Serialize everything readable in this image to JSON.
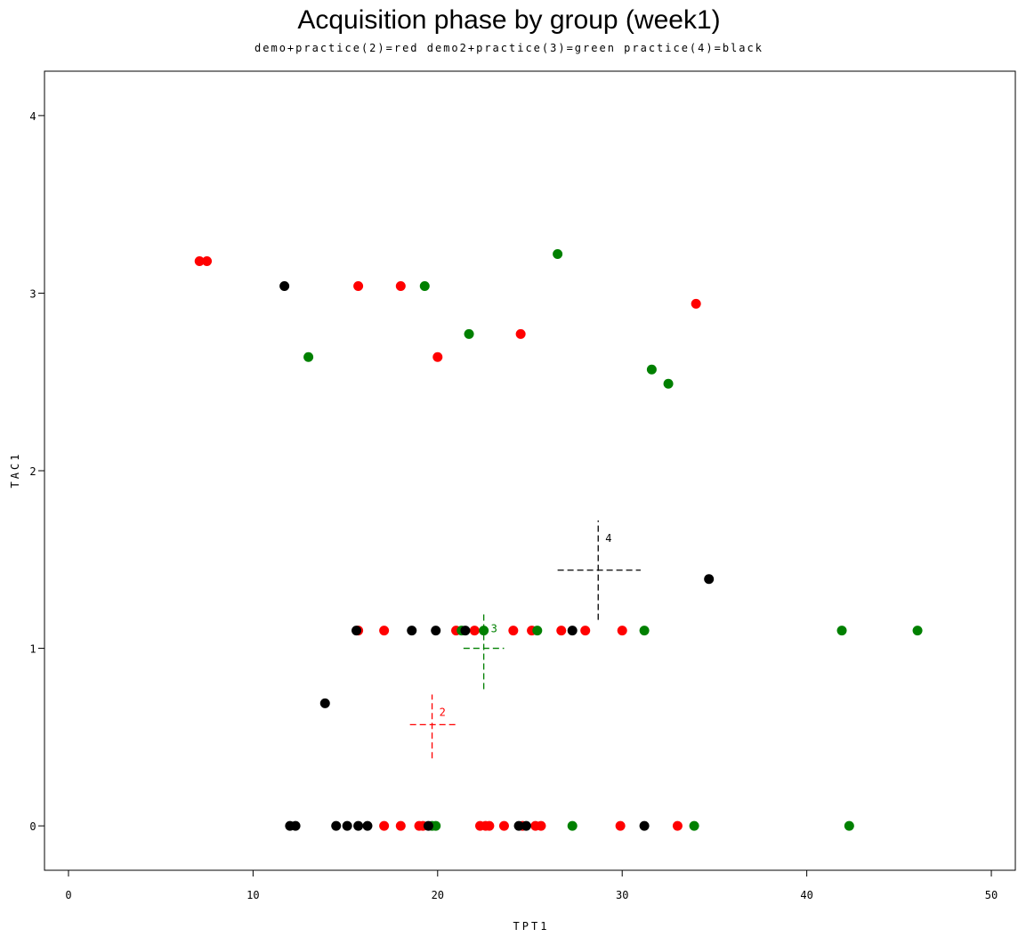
{
  "chart_data": {
    "type": "scatter",
    "title": "Acquisition phase by group (week1)",
    "subtitle": "demo+practice(2)=red demo2+practice(3)=green practice(4)=black",
    "xlabel": "TPT1",
    "ylabel": "TAC1",
    "xlim": [
      -1.3,
      51.3
    ],
    "ylim": [
      -0.25,
      4.25
    ],
    "xticks": [
      0,
      10,
      20,
      30,
      40,
      50
    ],
    "yticks": [
      0,
      1,
      2,
      3,
      4
    ],
    "grid": false,
    "series": [
      {
        "label": "2",
        "color": "#ff0000",
        "points": [
          [
            7.1,
            3.18
          ],
          [
            7.5,
            3.18
          ],
          [
            15.7,
            3.04
          ],
          [
            18.0,
            3.04
          ],
          [
            34.0,
            2.94
          ],
          [
            24.5,
            2.77
          ],
          [
            20.0,
            2.64
          ],
          [
            15.7,
            1.1
          ],
          [
            17.1,
            1.1
          ],
          [
            21.0,
            1.1
          ],
          [
            22.0,
            1.1
          ],
          [
            24.1,
            1.1
          ],
          [
            25.1,
            1.1
          ],
          [
            26.7,
            1.1
          ],
          [
            28.0,
            1.1
          ],
          [
            30.0,
            1.1
          ],
          [
            17.1,
            0
          ],
          [
            18.0,
            0
          ],
          [
            19.0,
            0
          ],
          [
            19.2,
            0
          ],
          [
            22.3,
            0
          ],
          [
            22.6,
            0
          ],
          [
            22.8,
            0
          ],
          [
            23.6,
            0
          ],
          [
            24.6,
            0
          ],
          [
            25.3,
            0
          ],
          [
            25.6,
            0
          ],
          [
            29.9,
            0
          ],
          [
            33.0,
            0
          ]
        ],
        "mean": {
          "x": 19.7,
          "y": 0.57,
          "x_err": [
            18.5,
            21.0
          ],
          "y_err": [
            0.38,
            0.74
          ]
        }
      },
      {
        "label": "3",
        "color": "#008000",
        "points": [
          [
            19.3,
            3.04
          ],
          [
            26.5,
            3.22
          ],
          [
            13.0,
            2.64
          ],
          [
            21.7,
            2.77
          ],
          [
            31.6,
            2.57
          ],
          [
            32.5,
            2.49
          ],
          [
            21.3,
            1.1
          ],
          [
            22.5,
            1.1
          ],
          [
            25.4,
            1.1
          ],
          [
            31.2,
            1.1
          ],
          [
            41.9,
            1.1
          ],
          [
            46.0,
            1.1
          ],
          [
            19.7,
            0
          ],
          [
            19.9,
            0
          ],
          [
            27.3,
            0
          ],
          [
            33.9,
            0
          ],
          [
            42.3,
            0
          ]
        ],
        "mean": {
          "x": 22.5,
          "y": 1.0,
          "x_err": [
            21.4,
            23.6
          ],
          "y_err": [
            0.77,
            1.21
          ]
        }
      },
      {
        "label": "4",
        "color": "#000000",
        "points": [
          [
            11.7,
            3.04
          ],
          [
            34.7,
            1.39
          ],
          [
            13.9,
            0.69
          ],
          [
            15.6,
            1.1
          ],
          [
            18.6,
            1.1
          ],
          [
            19.9,
            1.1
          ],
          [
            21.5,
            1.1
          ],
          [
            27.3,
            1.1
          ],
          [
            12.0,
            0
          ],
          [
            12.3,
            0
          ],
          [
            14.5,
            0
          ],
          [
            15.1,
            0
          ],
          [
            15.7,
            0
          ],
          [
            16.2,
            0
          ],
          [
            19.5,
            0
          ],
          [
            24.4,
            0
          ],
          [
            24.8,
            0
          ],
          [
            31.2,
            0
          ]
        ],
        "mean": {
          "x": 28.7,
          "y": 1.44,
          "x_err": [
            26.5,
            31.0
          ],
          "y_err": [
            1.16,
            1.72
          ]
        }
      }
    ]
  }
}
